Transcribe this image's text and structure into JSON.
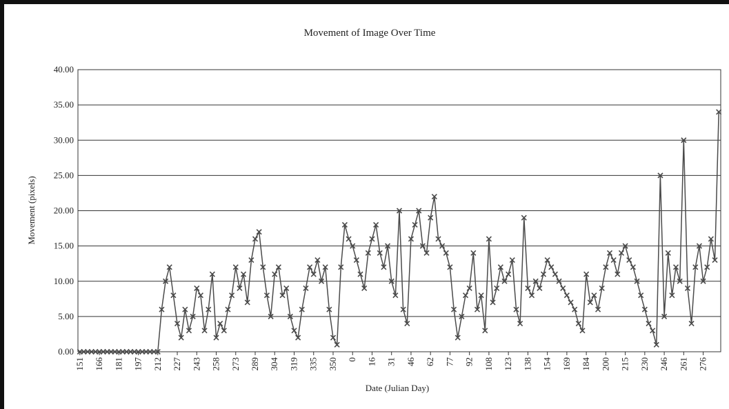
{
  "chart_data": {
    "type": "line",
    "title": "Movement of Image Over Time",
    "xlabel": "Date (Julian Day)",
    "ylabel": "Movement (pixels)",
    "color": "#4a4a4a",
    "marker": "x",
    "grid": true,
    "ylim": [
      0,
      40
    ],
    "yticks": [
      {
        "value": 0,
        "label": "0.00"
      },
      {
        "value": 5,
        "label": "5.00"
      },
      {
        "value": 10,
        "label": "10.00"
      },
      {
        "value": 15,
        "label": "15.00"
      },
      {
        "value": 20,
        "label": "20.00"
      },
      {
        "value": 25,
        "label": "25.00"
      },
      {
        "value": 30,
        "label": "30.00"
      },
      {
        "value": 35,
        "label": "35.00"
      },
      {
        "value": 40,
        "label": "40.00"
      }
    ],
    "categories": [
      "151",
      null,
      null,
      null,
      null,
      "166",
      null,
      null,
      null,
      null,
      "181",
      null,
      null,
      null,
      null,
      "197",
      null,
      null,
      null,
      null,
      "212",
      null,
      null,
      null,
      null,
      "227",
      null,
      null,
      null,
      null,
      "243",
      null,
      null,
      null,
      null,
      "258",
      null,
      null,
      null,
      null,
      "273",
      null,
      null,
      null,
      null,
      "289",
      null,
      null,
      null,
      null,
      "304",
      null,
      null,
      null,
      null,
      "319",
      null,
      null,
      null,
      null,
      "335",
      null,
      null,
      null,
      null,
      "350",
      null,
      null,
      null,
      null,
      "0",
      null,
      null,
      null,
      null,
      "16",
      null,
      null,
      null,
      null,
      "31",
      null,
      null,
      null,
      null,
      "46",
      null,
      null,
      null,
      null,
      "62",
      null,
      null,
      null,
      null,
      "77",
      null,
      null,
      null,
      null,
      "92",
      null,
      null,
      null,
      null,
      "108",
      null,
      null,
      null,
      null,
      "123",
      null,
      null,
      null,
      null,
      "138",
      null,
      null,
      null,
      null,
      "154",
      null,
      null,
      null,
      null,
      "169",
      null,
      null,
      null,
      null,
      "184",
      null,
      null,
      null,
      null,
      "200",
      null,
      null,
      null,
      null,
      "215",
      null,
      null,
      null,
      null,
      "230",
      null,
      null,
      null,
      null,
      "246",
      null,
      null,
      null,
      null,
      "261",
      null,
      null,
      null,
      null,
      "276",
      null,
      null,
      null,
      null
    ],
    "values": [
      0,
      0,
      0,
      0,
      0,
      0,
      0,
      0,
      0,
      0,
      0,
      0,
      0,
      0,
      0,
      0,
      0,
      0,
      0,
      0,
      0,
      6,
      10,
      12,
      8,
      4,
      2,
      6,
      3,
      5,
      9,
      8,
      3,
      6,
      11,
      2,
      4,
      3,
      6,
      8,
      12,
      9,
      11,
      7,
      13,
      16,
      17,
      12,
      8,
      5,
      11,
      12,
      8,
      9,
      5,
      3,
      2,
      6,
      9,
      12,
      11,
      13,
      10,
      12,
      6,
      2,
      1,
      12,
      18,
      16,
      15,
      13,
      11,
      9,
      14,
      16,
      18,
      14,
      12,
      15,
      10,
      8,
      20,
      6,
      4,
      16,
      18,
      20,
      15,
      14,
      19,
      22,
      16,
      15,
      14,
      12,
      6,
      2,
      5,
      8,
      9,
      14,
      6,
      8,
      3,
      16,
      7,
      9,
      12,
      10,
      11,
      13,
      6,
      4,
      19,
      9,
      8,
      10,
      9,
      11,
      13,
      12,
      11,
      10,
      9,
      8,
      7,
      6,
      4,
      3,
      11,
      7,
      8,
      6,
      9,
      12,
      14,
      13,
      11,
      14,
      15,
      13,
      12,
      10,
      8,
      6,
      4,
      3,
      1,
      25,
      5,
      14,
      8,
      12,
      10,
      30,
      9,
      4,
      12,
      15,
      10,
      12,
      16,
      13,
      34
    ]
  }
}
